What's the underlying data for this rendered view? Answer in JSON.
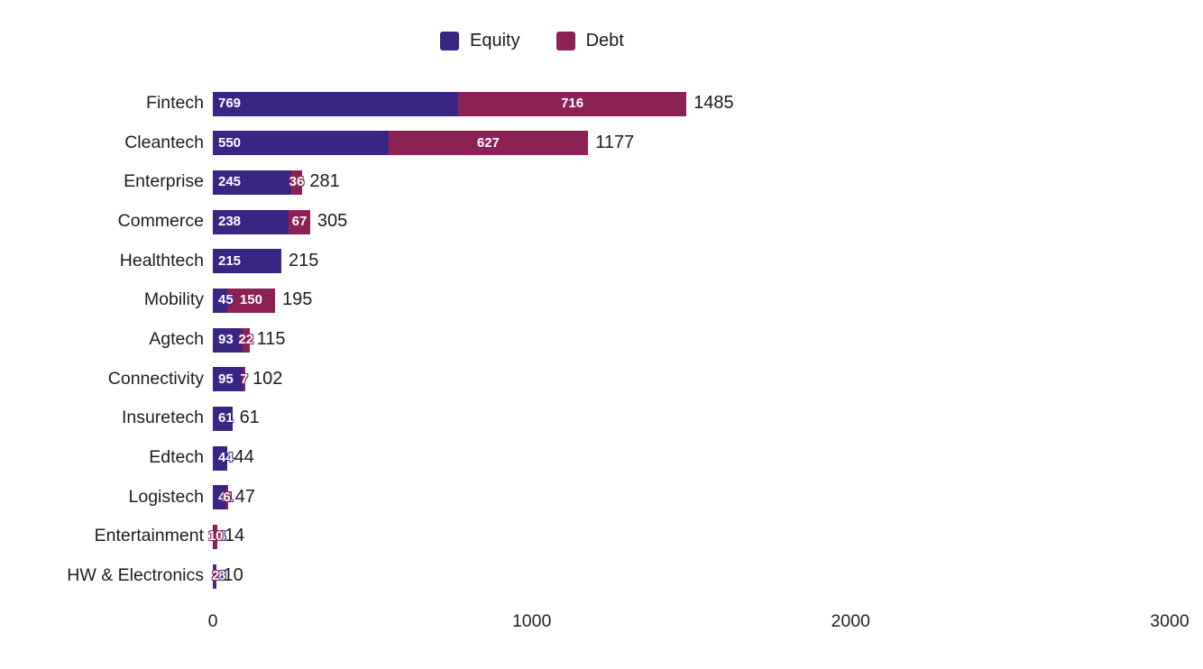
{
  "legend": {
    "items": [
      {
        "label": "Equity",
        "color": "#3b2583"
      },
      {
        "label": "Debt",
        "color": "#8c2155"
      }
    ]
  },
  "chart_data": {
    "type": "bar",
    "orientation": "horizontal",
    "stacked": true,
    "title": "",
    "xlabel": "",
    "ylabel": "",
    "grid": false,
    "legend_position": "top",
    "xlim": [
      0,
      3000
    ],
    "xticks": [
      "0",
      "1000",
      "2000",
      "3000"
    ],
    "categories": [
      "Fintech",
      "Cleantech",
      "Enterprise",
      "Commerce",
      "Healthtech",
      "Mobility",
      "Agtech",
      "Connectivity",
      "Insuretech",
      "Edtech",
      "Logistech",
      "Entertainment",
      "HW & Electronics"
    ],
    "series": [
      {
        "name": "Equity",
        "color": "#3b2583",
        "values": [
          769,
          550,
          245,
          238,
          215,
          45,
          93,
          95,
          61,
          44,
          41,
          4,
          8
        ]
      },
      {
        "name": "Debt",
        "color": "#8c2155",
        "values": [
          716,
          627,
          36,
          67,
          0,
          150,
          22,
          7,
          0,
          0,
          6,
          10,
          2
        ]
      }
    ],
    "totals": [
      1485,
      1177,
      281,
      305,
      215,
      195,
      115,
      102,
      61,
      44,
      47,
      14,
      10
    ]
  }
}
